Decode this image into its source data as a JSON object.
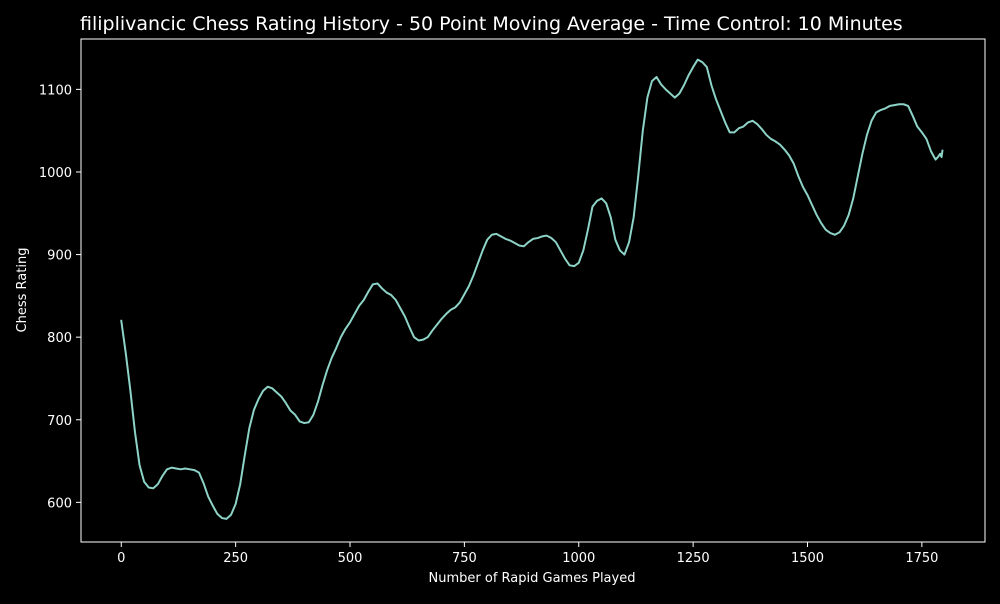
{
  "chart_data": {
    "type": "line",
    "title": "filiplivancic Chess Rating History -  50 Point Moving Average - Time Control: 10 Minutes",
    "xlabel": "Number of Rapid Games Played",
    "ylabel": "Chess Rating",
    "xlim": [
      -88,
      1888
    ],
    "ylim": [
      552,
      1161
    ],
    "x_ticks": [
      0,
      250,
      500,
      750,
      1000,
      1250,
      1500,
      1750
    ],
    "x_tick_labels": [
      "0",
      "250",
      "500",
      "750",
      "1000",
      "1250",
      "1500",
      "1750"
    ],
    "y_ticks": [
      600,
      700,
      800,
      900,
      1000,
      1100
    ],
    "y_tick_labels": [
      "600",
      "700",
      "800",
      "900",
      "1000",
      "1100"
    ],
    "grid": false,
    "colors": {
      "background": "#000000",
      "axes": "#ffffff",
      "text": "#ffffff",
      "line": "#8dd3c7"
    },
    "series": [
      {
        "x": [
          0,
          10,
          20,
          30,
          40,
          50,
          60,
          70,
          80,
          90,
          100,
          110,
          120,
          130,
          140,
          150,
          160,
          170,
          180,
          190,
          200,
          210,
          220,
          230,
          240,
          250,
          260,
          270,
          280,
          290,
          300,
          310,
          320,
          330,
          340,
          350,
          360,
          370,
          380,
          390,
          400,
          410,
          420,
          430,
          440,
          450,
          460,
          470,
          480,
          490,
          500,
          510,
          520,
          530,
          540,
          550,
          560,
          570,
          580,
          590,
          600,
          610,
          620,
          630,
          640,
          650,
          660,
          670,
          680,
          690,
          700,
          710,
          720,
          730,
          740,
          750,
          760,
          770,
          780,
          790,
          800,
          810,
          820,
          830,
          840,
          850,
          860,
          870,
          880,
          890,
          900,
          910,
          920,
          930,
          940,
          950,
          960,
          970,
          980,
          990,
          1000,
          1010,
          1020,
          1030,
          1040,
          1050,
          1060,
          1070,
          1080,
          1090,
          1100,
          1110,
          1120,
          1130,
          1140,
          1150,
          1160,
          1170,
          1180,
          1190,
          1200,
          1210,
          1220,
          1230,
          1240,
          1250,
          1260,
          1270,
          1280,
          1290,
          1300,
          1310,
          1320,
          1330,
          1340,
          1350,
          1360,
          1370,
          1380,
          1390,
          1400,
          1410,
          1420,
          1430,
          1440,
          1450,
          1460,
          1470,
          1480,
          1490,
          1500,
          1510,
          1520,
          1530,
          1540,
          1550,
          1560,
          1570,
          1580,
          1590,
          1600,
          1610,
          1620,
          1630,
          1640,
          1650,
          1660,
          1670,
          1680,
          1690,
          1700,
          1710,
          1720,
          1730,
          1740,
          1750,
          1760,
          1770,
          1780,
          1785,
          1790,
          1793,
          1795
        ],
        "values": [
          820,
          780,
          735,
          685,
          645,
          625,
          618,
          617,
          622,
          632,
          640,
          642,
          641,
          640,
          641,
          640,
          639,
          636,
          623,
          607,
          596,
          586,
          581,
          580,
          585,
          598,
          622,
          657,
          690,
          712,
          725,
          735,
          740,
          738,
          733,
          728,
          720,
          711,
          706,
          698,
          696,
          697,
          706,
          722,
          742,
          760,
          775,
          787,
          800,
          810,
          818,
          828,
          838,
          845,
          855,
          864,
          865,
          859,
          854,
          851,
          845,
          835,
          825,
          812,
          800,
          796,
          797,
          800,
          808,
          815,
          822,
          828,
          833,
          836,
          842,
          852,
          862,
          875,
          890,
          905,
          918,
          924,
          925,
          922,
          919,
          917,
          914,
          911,
          910,
          915,
          919,
          920,
          922,
          923,
          920,
          915,
          905,
          895,
          887,
          886,
          890,
          905,
          930,
          958,
          965,
          968,
          962,
          945,
          918,
          905,
          900,
          915,
          945,
          995,
          1050,
          1090,
          1110,
          1115,
          1106,
          1100,
          1095,
          1090,
          1095,
          1105,
          1117,
          1127,
          1136,
          1133,
          1127,
          1105,
          1088,
          1074,
          1060,
          1048,
          1048,
          1053,
          1055,
          1060,
          1062,
          1058,
          1052,
          1045,
          1040,
          1037,
          1033,
          1027,
          1020,
          1010,
          995,
          982,
          972,
          960,
          948,
          938,
          930,
          926,
          924,
          927,
          935,
          948,
          968,
          995,
          1022,
          1045,
          1062,
          1072,
          1075,
          1077,
          1080,
          1081,
          1082,
          1082,
          1080,
          1068,
          1055,
          1048,
          1040,
          1025,
          1015,
          1018,
          1022,
          1018,
          1026
        ]
      }
    ]
  }
}
